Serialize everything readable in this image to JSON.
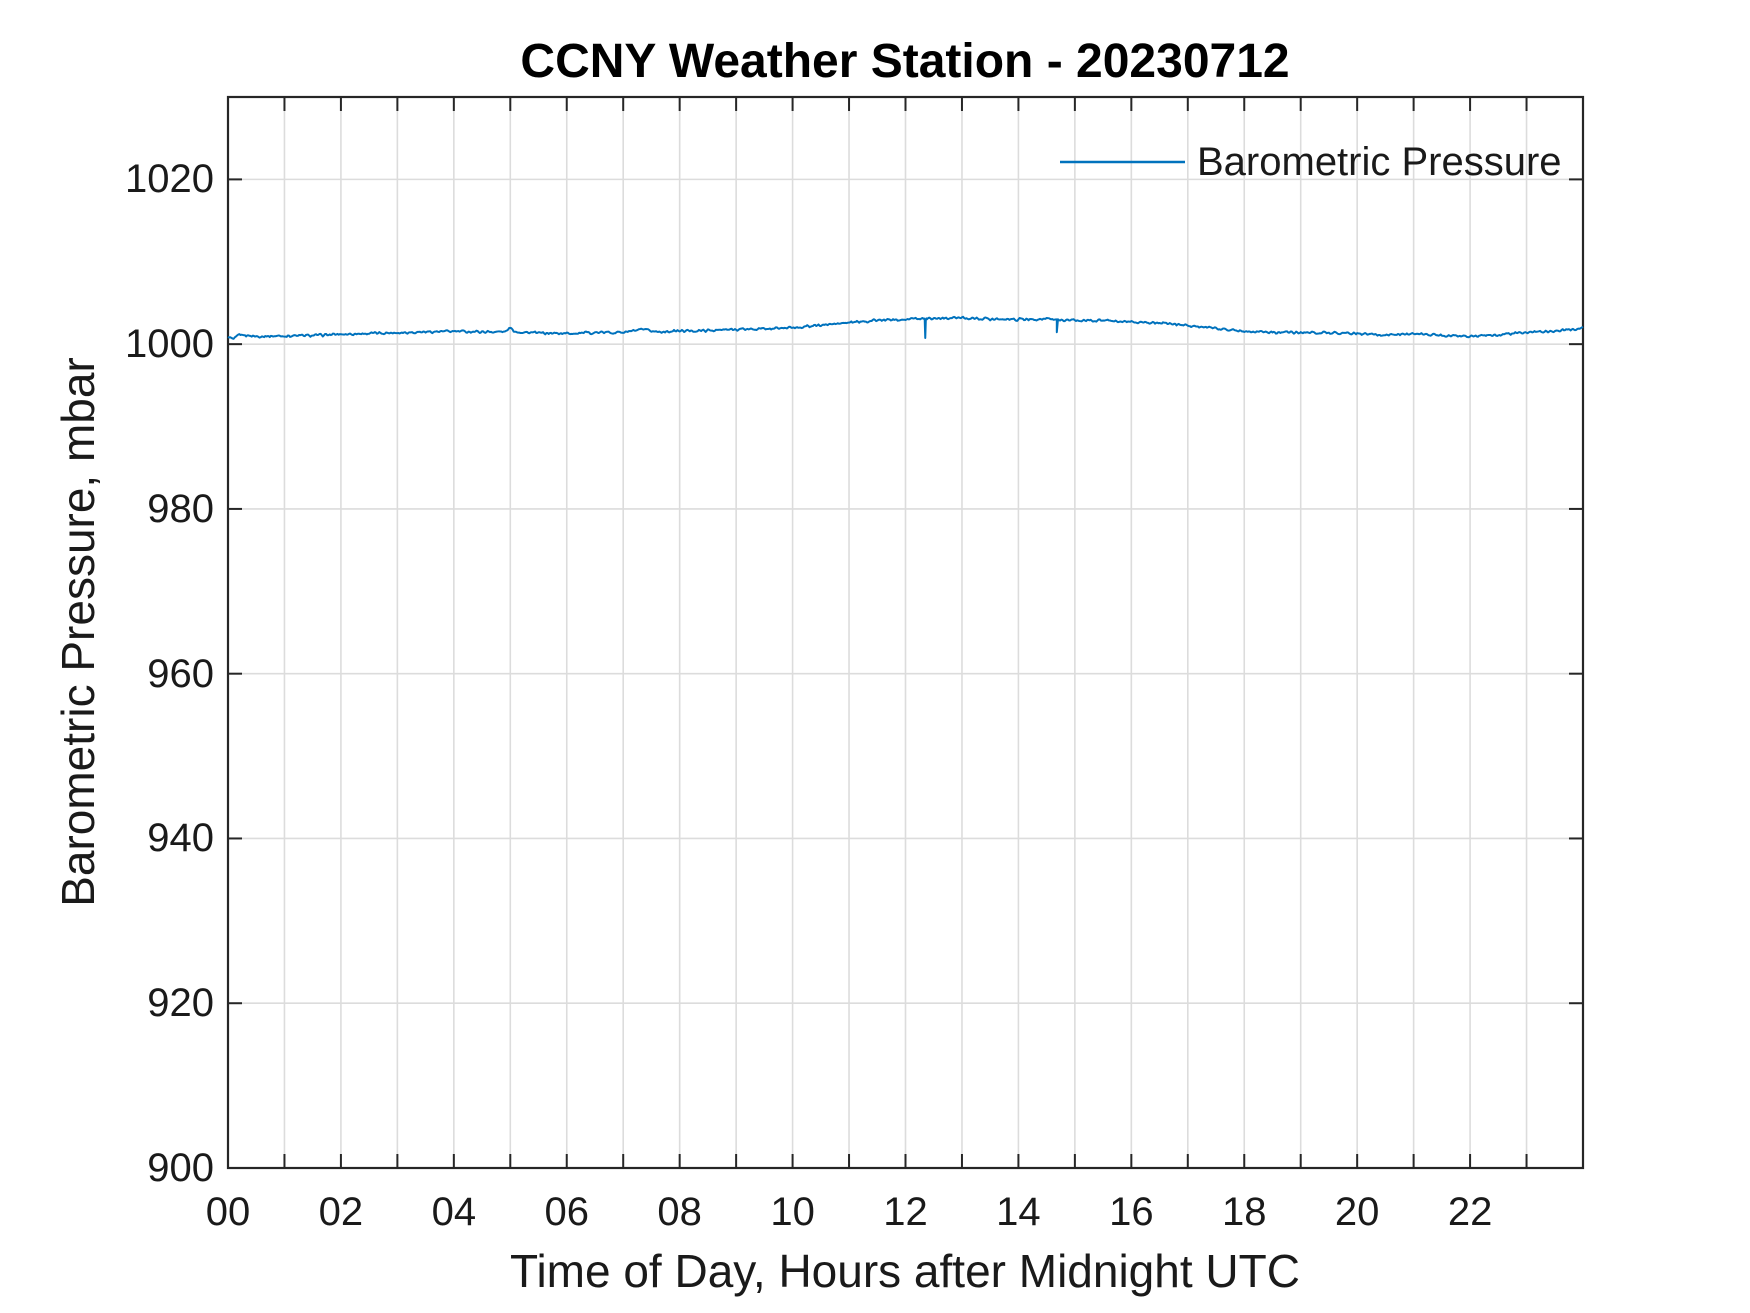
{
  "title": "CCNY Weather Station - 20230712",
  "legend": {
    "label": "Barometric Pressure",
    "box": "off",
    "position": "top-right-inside"
  },
  "colors": {
    "line": "#0072BD",
    "axis": "#262626",
    "grid": "#dcdcdc",
    "tick_text": "#1a1a1a",
    "title_text": "#000000",
    "background": "#ffffff"
  },
  "chart_data": {
    "type": "line",
    "title": "CCNY Weather Station - 20230712",
    "xlabel": "Time of Day, Hours after Midnight UTC",
    "ylabel": "Barometric Pressure, mbar",
    "xlim": [
      0,
      24
    ],
    "ylim": [
      900,
      1030
    ],
    "xtick_labels": [
      "00",
      "02",
      "04",
      "06",
      "08",
      "10",
      "12",
      "14",
      "16",
      "18",
      "20",
      "22"
    ],
    "xtick_values": [
      0,
      2,
      4,
      6,
      8,
      10,
      12,
      14,
      16,
      18,
      20,
      22
    ],
    "xtick_minor_step": 1,
    "ytick_labels": [
      "900",
      "920",
      "940",
      "960",
      "980",
      "1000",
      "1020"
    ],
    "ytick_values": [
      900,
      920,
      940,
      960,
      980,
      1000,
      1020
    ],
    "grid": true,
    "grid_x_step_hours": 1,
    "legend_position": "top-right-inside",
    "series": [
      {
        "name": "Barometric Pressure",
        "color": "#0072BD",
        "units": "mbar",
        "x_units": "hours after midnight UTC",
        "points": [
          [
            0.0,
            1000.9
          ],
          [
            0.1,
            1000.55
          ],
          [
            0.2,
            1001.15
          ],
          [
            0.5,
            1000.95
          ],
          [
            1.0,
            1001.0
          ],
          [
            1.5,
            1001.05
          ],
          [
            2.0,
            1001.2
          ],
          [
            2.5,
            1001.3
          ],
          [
            3.0,
            1001.4
          ],
          [
            3.5,
            1001.5
          ],
          [
            4.0,
            1001.55
          ],
          [
            4.5,
            1001.5
          ],
          [
            4.9,
            1001.5
          ],
          [
            5.0,
            1001.95
          ],
          [
            5.1,
            1001.5
          ],
          [
            5.5,
            1001.35
          ],
          [
            6.0,
            1001.3
          ],
          [
            6.5,
            1001.4
          ],
          [
            7.0,
            1001.45
          ],
          [
            7.35,
            1001.75
          ],
          [
            7.6,
            1001.5
          ],
          [
            8.0,
            1001.6
          ],
          [
            8.5,
            1001.65
          ],
          [
            9.0,
            1001.8
          ],
          [
            9.5,
            1001.85
          ],
          [
            10.0,
            1002.0
          ],
          [
            10.5,
            1002.3
          ],
          [
            11.0,
            1002.6
          ],
          [
            11.5,
            1002.9
          ],
          [
            12.0,
            1003.05
          ],
          [
            12.5,
            1003.15
          ],
          [
            13.0,
            1003.2
          ],
          [
            13.5,
            1003.05
          ],
          [
            14.0,
            1003.0
          ],
          [
            14.5,
            1003.05
          ],
          [
            15.0,
            1002.85
          ],
          [
            15.5,
            1002.85
          ],
          [
            16.0,
            1002.7
          ],
          [
            16.5,
            1002.6
          ],
          [
            17.0,
            1002.3
          ],
          [
            17.5,
            1001.9
          ],
          [
            18.0,
            1001.6
          ],
          [
            18.5,
            1001.45
          ],
          [
            19.0,
            1001.4
          ],
          [
            19.5,
            1001.4
          ],
          [
            20.0,
            1001.3
          ],
          [
            20.4,
            1001.1
          ],
          [
            21.0,
            1001.25
          ],
          [
            21.6,
            1001.05
          ],
          [
            22.1,
            1000.95
          ],
          [
            22.5,
            1001.15
          ],
          [
            23.0,
            1001.4
          ],
          [
            23.5,
            1001.6
          ],
          [
            23.9,
            1001.85
          ],
          [
            24.0,
            1002.0
          ]
        ],
        "downward_spikes": [
          [
            12.35,
            1000.75
          ],
          [
            14.68,
            1001.45
          ]
        ],
        "noise_amplitude_mbar": 0.09
      }
    ]
  }
}
